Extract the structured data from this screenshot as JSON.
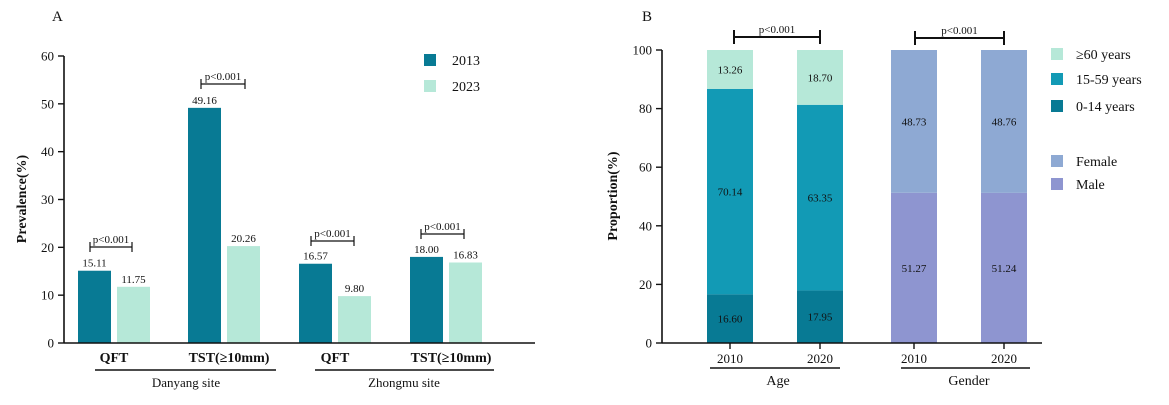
{
  "chart_data": [
    {
      "panel": "A",
      "type": "bar",
      "ylabel": "Prevalence(%)",
      "ylim": [
        0,
        60
      ],
      "yticks": [
        0,
        10,
        20,
        30,
        40,
        50,
        60
      ],
      "categories": [
        "QFT",
        "TST(≥10mm)",
        "QFT",
        "TST(≥10mm)"
      ],
      "groups": [
        "Danyang site",
        "Zhongmu site"
      ],
      "series": [
        {
          "name": "2013",
          "color": "#087a94",
          "values": [
            15.11,
            49.16,
            16.57,
            18.0
          ],
          "labels": [
            "15.11",
            "49.16",
            "16.57",
            "18.00"
          ]
        },
        {
          "name": "2023",
          "color": "#b6e8d8",
          "values": [
            11.75,
            20.26,
            9.8,
            16.83
          ],
          "labels": [
            "11.75",
            "20.26",
            "9.80",
            "16.83"
          ]
        }
      ],
      "annotations": [
        "p<0.001",
        "p<0.001",
        "p<0.001",
        "p<0.001"
      ],
      "legend": "top-right",
      "grid": false
    },
    {
      "panel": "B",
      "type": "bar",
      "stacked": true,
      "ylabel": "Proportion(%)",
      "ylim": [
        0,
        100
      ],
      "yticks": [
        0,
        20,
        40,
        60,
        80,
        100
      ],
      "categories": [
        "2010",
        "2020",
        "2010",
        "2020"
      ],
      "groups": [
        "Age",
        "Gender"
      ],
      "series": [
        {
          "name": "0-14 years",
          "color": "#087a94",
          "values": [
            16.6,
            17.95,
            null,
            null
          ],
          "labels": [
            "16.60",
            "17.95"
          ]
        },
        {
          "name": "15-59 years",
          "color": "#129ab5",
          "values": [
            70.14,
            63.35,
            null,
            null
          ],
          "labels": [
            "70.14",
            "63.35"
          ]
        },
        {
          "name": "≥60 years",
          "color": "#b6e8d8",
          "values": [
            13.26,
            18.7,
            null,
            null
          ],
          "labels": [
            "13.26",
            "18.70"
          ]
        },
        {
          "name": "Male",
          "color": "#8e95d0",
          "values": [
            null,
            null,
            51.27,
            51.24
          ],
          "labels": [
            "51.27",
            "51.24"
          ]
        },
        {
          "name": "Female",
          "color": "#8ea9d3",
          "values": [
            null,
            null,
            48.73,
            48.76
          ],
          "labels": [
            "48.73",
            "48.76"
          ]
        }
      ],
      "legend_order": [
        "≥60 years",
        "15-59 years",
        "0-14 years",
        "Female",
        "Male"
      ],
      "annotations": [
        "p<0.001",
        "p<0.001"
      ],
      "legend": "right",
      "grid": false
    }
  ]
}
